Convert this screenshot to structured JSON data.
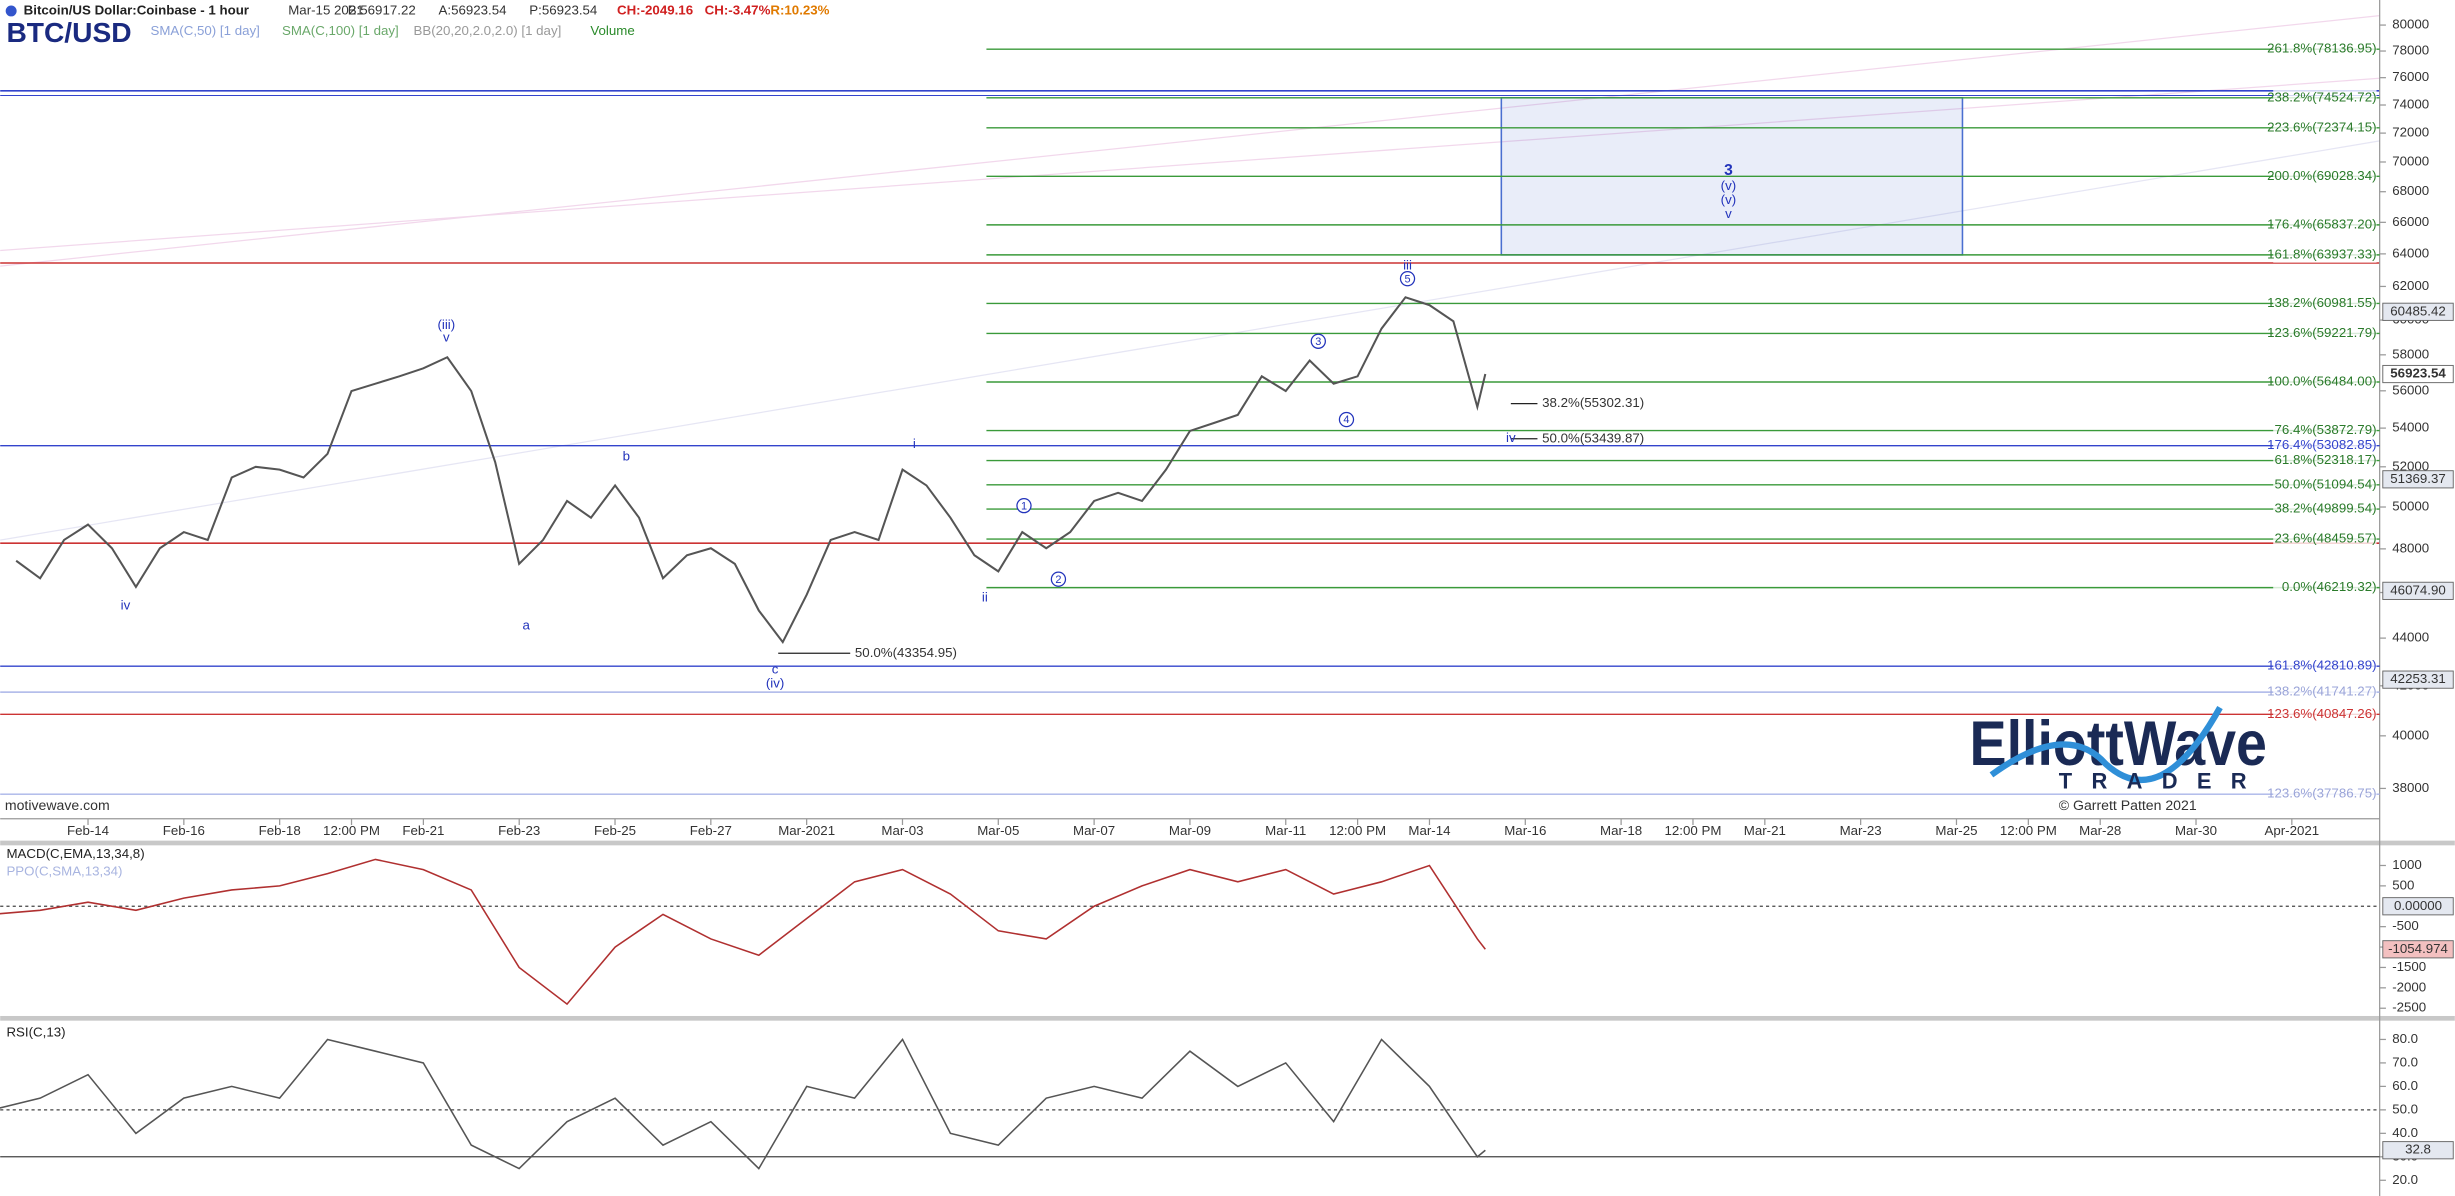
{
  "header": {
    "symbol": "BTC/USD",
    "title": "Bitcoin/US Dollar:Coinbase - 1 hour",
    "date": "Mar-15 2021",
    "stats": [
      "B:56917.22",
      "A:56923.54",
      "P:56923.54",
      "CH:-2049.16",
      "CH:-3.47%",
      "R:10.23%"
    ],
    "studies": [
      "SMA(C,50) [1 day]",
      "SMA(C,100) [1 day]",
      "BB(20,20,2.0,2.0) [1 day]",
      "Volume"
    ]
  },
  "watermark": "motivewave.com",
  "logo": {
    "name": "ElliottWave",
    "sub": "TRADER",
    "copyright": "© Garrett Patten 2021"
  },
  "chart_data": [
    {
      "type": "line",
      "log_scale": true,
      "color": "#555555",
      "x": [
        "2021-02-12T12:00",
        "2021-02-13T00:00",
        "2021-02-13T12:00",
        "2021-02-14T00:00",
        "2021-02-14T12:00",
        "2021-02-15T00:00",
        "2021-02-15T12:00",
        "2021-02-16T00:00",
        "2021-02-16T12:00",
        "2021-02-17T00:00",
        "2021-02-17T12:00",
        "2021-02-18T00:00",
        "2021-02-18T12:00",
        "2021-02-19T00:00",
        "2021-02-19T12:00",
        "2021-02-20T00:00",
        "2021-02-20T12:00",
        "2021-02-21T00:00",
        "2021-02-21T12:00",
        "2021-02-22T00:00",
        "2021-02-22T12:00",
        "2021-02-23T00:00",
        "2021-02-23T12:00",
        "2021-02-24T00:00",
        "2021-02-24T12:00",
        "2021-02-25T00:00",
        "2021-02-25T12:00",
        "2021-02-26T00:00",
        "2021-02-26T12:00",
        "2021-02-27T00:00",
        "2021-02-27T12:00",
        "2021-02-28T00:00",
        "2021-02-28T12:00",
        "2021-03-01T00:00",
        "2021-03-01T12:00",
        "2021-03-02T00:00",
        "2021-03-02T12:00",
        "2021-03-03T00:00",
        "2021-03-03T12:00",
        "2021-03-04T00:00",
        "2021-03-04T12:00",
        "2021-03-05T00:00",
        "2021-03-05T12:00",
        "2021-03-06T00:00",
        "2021-03-06T12:00",
        "2021-03-07T00:00",
        "2021-03-07T12:00",
        "2021-03-08T00:00",
        "2021-03-08T12:00",
        "2021-03-09T00:00",
        "2021-03-09T12:00",
        "2021-03-10T00:00",
        "2021-03-10T12:00",
        "2021-03-11T00:00",
        "2021-03-11T12:00",
        "2021-03-12T00:00",
        "2021-03-12T12:00",
        "2021-03-13T00:00",
        "2021-03-13T12:00",
        "2021-03-14T00:00",
        "2021-03-14T12:00",
        "2021-03-15T00:00",
        "2021-03-15T04:00"
      ],
      "values": [
        47450,
        46640,
        48420,
        49150,
        48030,
        46250,
        48030,
        48790,
        48420,
        51460,
        52000,
        51860,
        51460,
        52660,
        55990,
        56390,
        56800,
        57240,
        57860,
        55990,
        52240,
        47300,
        48420,
        50300,
        49480,
        51060,
        49480,
        46640,
        47700,
        48030,
        47300,
        45200,
        43830,
        45900,
        48420,
        48790,
        48420,
        51860,
        51060,
        49480,
        47700,
        46960,
        48790,
        48030,
        48790,
        50300,
        50700,
        50300,
        51860,
        53850,
        54270,
        54700,
        56800,
        55990,
        57680,
        56390,
        56800,
        59500,
        61350,
        60880,
        59930,
        55120,
        56923.54
      ],
      "xlim": [
        "2021-02-12T04:00",
        "2021-04-02T20:00"
      ],
      "xticks": [
        {
          "value": "2021-02-14",
          "label": "Feb-14"
        },
        {
          "value": "2021-02-16",
          "label": "Feb-16"
        },
        {
          "value": "2021-02-18",
          "label": "Feb-18"
        },
        {
          "value": "2021-02-19T12:00",
          "label": "12:00 PM"
        },
        {
          "value": "2021-02-21",
          "label": "Feb-21"
        },
        {
          "value": "2021-02-23",
          "label": "Feb-23"
        },
        {
          "value": "2021-02-25",
          "label": "Feb-25"
        },
        {
          "value": "2021-02-27",
          "label": "Feb-27"
        },
        {
          "value": "2021-03-01",
          "label": "Mar-2021"
        },
        {
          "value": "2021-03-03",
          "label": "Mar-03"
        },
        {
          "value": "2021-03-05",
          "label": "Mar-05"
        },
        {
          "value": "2021-03-07",
          "label": "Mar-07"
        },
        {
          "value": "2021-03-09",
          "label": "Mar-09"
        },
        {
          "value": "2021-03-11",
          "label": "Mar-11"
        },
        {
          "value": "2021-03-12T12:00",
          "label": "12:00 PM"
        },
        {
          "value": "2021-03-14",
          "label": "Mar-14"
        },
        {
          "value": "2021-03-16",
          "label": "Mar-16"
        },
        {
          "value": "2021-03-18",
          "label": "Mar-18"
        },
        {
          "value": "2021-03-19T12:00",
          "label": "12:00 PM"
        },
        {
          "value": "2021-03-21",
          "label": "Mar-21"
        },
        {
          "value": "2021-03-23",
          "label": "Mar-23"
        },
        {
          "value": "2021-03-25",
          "label": "Mar-25"
        },
        {
          "value": "2021-03-26T12:00",
          "label": "12:00 PM"
        },
        {
          "value": "2021-03-28",
          "label": "Mar-28"
        },
        {
          "value": "2021-03-30",
          "label": "Mar-30"
        },
        {
          "value": "2021-04-01",
          "label": "Apr-2021"
        }
      ],
      "ylim": [
        36950,
        81980
      ],
      "yticks": [
        38000,
        40000,
        42000,
        44000,
        46000,
        48000,
        50000,
        52000,
        54000,
        56000,
        58000,
        60000,
        62000,
        64000,
        66000,
        68000,
        70000,
        72000,
        74000,
        76000,
        78000,
        80000
      ],
      "levels": [
        {
          "label": "261.8%(78136.95)",
          "value": 78136.95,
          "color": "#3a9a3a"
        },
        {
          "label": "238.2%(74524.72)",
          "value": 74524.72,
          "color": "#3a9a3a"
        },
        {
          "label": "223.6%(72374.15)",
          "value": 72374.15,
          "color": "#3a9a3a"
        },
        {
          "label": "200.0%(69028.34)",
          "value": 69028.34,
          "color": "#3a9a3a"
        },
        {
          "label": "176.4%(65837.20)",
          "value": 65837.2,
          "color": "#3a9a3a"
        },
        {
          "label": "161.8%(63937.33)",
          "value": 63937.33,
          "color": "#3a9a3a"
        },
        {
          "label": "138.2%(60981.55)",
          "value": 60981.55,
          "color": "#3a9a3a"
        },
        {
          "label": "123.6%(59221.79)",
          "value": 59221.79,
          "color": "#3a9a3a"
        },
        {
          "label": "100.0%(56484.00)",
          "value": 56484,
          "color": "#3a9a3a"
        },
        {
          "label": "76.4%(53872.79)",
          "value": 53872.79,
          "color": "#3a9a3a"
        },
        {
          "label": "176.4%(53082.85)",
          "value": 53082.85,
          "color": "#3344cc"
        },
        {
          "label": "61.8%(52318.17)",
          "value": 52318.17,
          "color": "#3a9a3a"
        },
        {
          "label": "50.0%(51094.54)",
          "value": 51094.54,
          "color": "#3a9a3a"
        },
        {
          "label": "38.2%(49899.54)",
          "value": 49899.54,
          "color": "#3a9a3a"
        },
        {
          "label": "23.6%(48459.57)",
          "value": 48459.57,
          "color": "#3a9a3a"
        },
        {
          "label": "0.0%(46219.32)",
          "value": 46219.32,
          "color": "#3a9a3a"
        },
        {
          "label": "161.8%(42810.89)",
          "value": 42810.89,
          "color": "#3344cc"
        },
        {
          "label": "138.2%(41741.27)",
          "value": 41741.27,
          "color": "#aab4e8"
        },
        {
          "label": "123.6%(40847.26)",
          "value": 40847.26,
          "color": "#cc3333"
        },
        {
          "label": "123.6%(37786.75)",
          "value": 37786.75,
          "color": "#aab4e8"
        }
      ],
      "retracements": [
        {
          "label": "38.2%(55302.31)",
          "value": 55302.31
        },
        {
          "label": "50.0%(53439.87)",
          "value": 53439.87
        },
        {
          "label": "50.0%(43354.95)",
          "value": 43354.95
        }
      ],
      "target_box": {
        "x": [
          "2021-03-15T12:00",
          "2021-03-25T03:00"
        ],
        "y": [
          63937.33,
          74524.72
        ],
        "color": "#4a6fd0"
      },
      "annotations": [
        "(iii)",
        "v",
        "iv",
        "a",
        "b",
        "c",
        "(iv)",
        "i",
        "ii",
        "iii",
        "iv",
        "3",
        "(v)",
        "(v)",
        "v"
      ],
      "wave_counts": [
        "1",
        "2",
        "3",
        "4",
        "5"
      ],
      "price_tags": [
        60485.42,
        56923.54,
        51369.37,
        {
          "value": 46074.9,
          "label": "46074.90"
        },
        42253.31
      ]
    },
    {
      "type": "line",
      "title": "MACD(C,EMA,13,34,8)",
      "subtitle": "PPO(C,SMA,13,34)",
      "color": "#b03030",
      "x": [
        "2021-02-12",
        "2021-02-13",
        "2021-02-14",
        "2021-02-15",
        "2021-02-16",
        "2021-02-17",
        "2021-02-18",
        "2021-02-19",
        "2021-02-20",
        "2021-02-21",
        "2021-02-22",
        "2021-02-23",
        "2021-02-24",
        "2021-02-25",
        "2021-02-26",
        "2021-02-27",
        "2021-02-28",
        "2021-03-01",
        "2021-03-02",
        "2021-03-03",
        "2021-03-04",
        "2021-03-05",
        "2021-03-06",
        "2021-03-07",
        "2021-03-08",
        "2021-03-09",
        "2021-03-10",
        "2021-03-11",
        "2021-03-12",
        "2021-03-13",
        "2021-03-14",
        "2021-03-15",
        "2021-03-15T04:00"
      ],
      "values": [
        -200,
        -100,
        100,
        -100,
        200,
        400,
        500,
        800,
        1150,
        900,
        400,
        -1500,
        -2400,
        -1000,
        -200,
        -800,
        -1200,
        -300,
        600,
        900,
        300,
        -600,
        -800,
        0,
        500,
        900,
        600,
        900,
        300,
        600,
        1000,
        -800,
        -1054.974
      ],
      "xlim": [
        "2021-02-12T04:00",
        "2021-04-02T20:00"
      ],
      "ylim": [
        -2690,
        1494
      ],
      "yticks": [
        1000,
        500,
        -500,
        -1000,
        -1500,
        -2000,
        -2500
      ],
      "reference_lines": [
        0
      ],
      "tags": [
        {
          "value": 0,
          "label": "0.00000"
        },
        -1054.974
      ]
    },
    {
      "type": "line",
      "title": "RSI(C,13)",
      "color": "#555555",
      "x": [
        "2021-02-12",
        "2021-02-13",
        "2021-02-14",
        "2021-02-15",
        "2021-02-16",
        "2021-02-17",
        "2021-02-18",
        "2021-02-19",
        "2021-02-20",
        "2021-02-21",
        "2021-02-22",
        "2021-02-23",
        "2021-02-24",
        "2021-02-25",
        "2021-02-26",
        "2021-02-27",
        "2021-02-28",
        "2021-03-01",
        "2021-03-02",
        "2021-03-03",
        "2021-03-04",
        "2021-03-05",
        "2021-03-06",
        "2021-03-07",
        "2021-03-08",
        "2021-03-09",
        "2021-03-10",
        "2021-03-11",
        "2021-03-12",
        "2021-03-13",
        "2021-03-14",
        "2021-03-15",
        "2021-03-15T04:00"
      ],
      "values": [
        50,
        55,
        65,
        40,
        55,
        60,
        55,
        80,
        75,
        70,
        35,
        25,
        45,
        55,
        35,
        45,
        25,
        60,
        55,
        80,
        40,
        35,
        55,
        60,
        55,
        75,
        60,
        70,
        45,
        80,
        60,
        30,
        32.8
      ],
      "xlim": [
        "2021-02-12T04:00",
        "2021-04-02T20:00"
      ],
      "ylim": [
        13.3,
        88
      ],
      "yticks": [
        {
          "value": 80,
          "label": "80.0"
        },
        {
          "value": 70,
          "label": "70.0"
        },
        {
          "value": 60,
          "label": "60.0"
        },
        {
          "value": 50,
          "label": "50.0"
        },
        {
          "value": 40,
          "label": "40.0"
        },
        {
          "value": 30,
          "label": "30.0"
        },
        {
          "value": 20,
          "label": "20.0"
        }
      ],
      "reference_lines": [
        50,
        30
      ],
      "tags": [
        32.8
      ]
    }
  ]
}
